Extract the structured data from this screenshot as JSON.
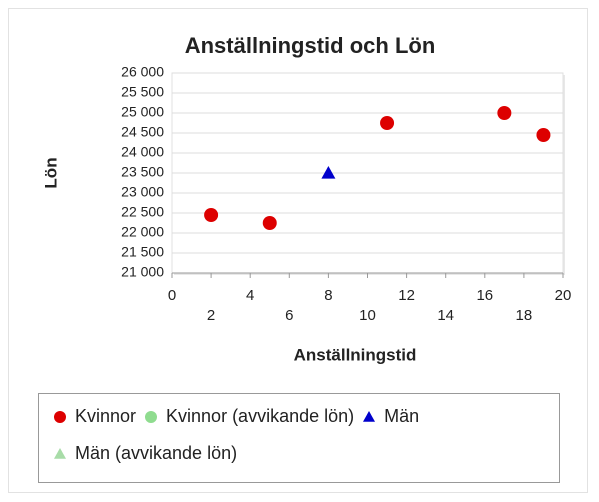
{
  "chart_data": {
    "type": "scatter",
    "title": "Anställningstid och Lön",
    "x_label": "Anställningstid",
    "y_label": "Lön",
    "xlim": [
      0,
      20
    ],
    "xticks": [
      0,
      2,
      4,
      6,
      8,
      10,
      12,
      14,
      16,
      18,
      20
    ],
    "ylim": [
      21000,
      26000
    ],
    "yticks": [
      {
        "value": 21000,
        "label": "21 000"
      },
      {
        "value": 21500,
        "label": "21 500"
      },
      {
        "value": 22000,
        "label": "22 000"
      },
      {
        "value": 22500,
        "label": "22 500"
      },
      {
        "value": 23000,
        "label": "23 000"
      },
      {
        "value": 23500,
        "label": "23 500"
      },
      {
        "value": 24000,
        "label": "24 000"
      },
      {
        "value": 24500,
        "label": "24 500"
      },
      {
        "value": 25000,
        "label": "25 000"
      },
      {
        "value": 25500,
        "label": "25 500"
      },
      {
        "value": 26000,
        "label": "26 000"
      }
    ],
    "grid": true,
    "series": [
      {
        "name": "Kvinnor",
        "color": "#dd0000",
        "marker": "circle",
        "x": [
          2,
          5,
          11,
          17,
          19
        ],
        "values": [
          22450,
          22250,
          24750,
          25000,
          24450
        ]
      },
      {
        "name": "Kvinnor (avvikande lön)",
        "color": "#8fdc8f",
        "marker": "circle",
        "x": [],
        "values": []
      },
      {
        "name": "Män",
        "color": "#0000cc",
        "marker": "triangle",
        "x": [
          8
        ],
        "values": [
          23500
        ]
      },
      {
        "name": "Män (avvikande lön)",
        "color": "#a8dca8",
        "marker": "triangle",
        "x": [],
        "values": []
      }
    ]
  }
}
